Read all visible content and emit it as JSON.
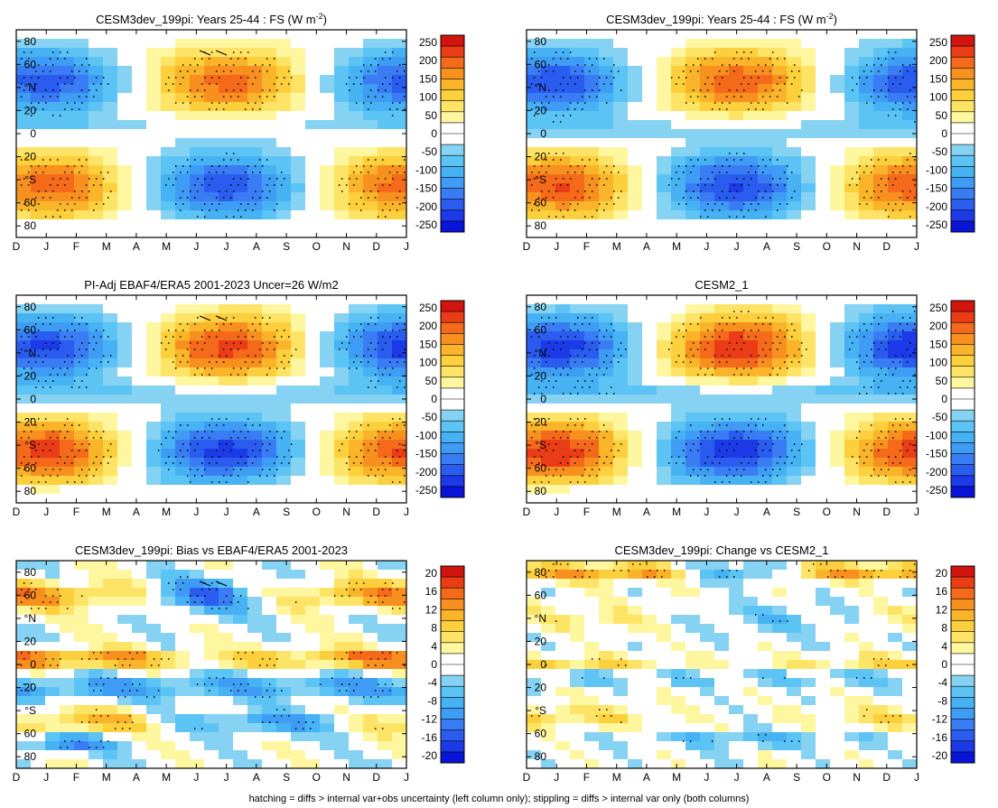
{
  "colors": {
    "fs_scale": [
      "#0a14d8",
      "#1c3ae8",
      "#2a5cf0",
      "#3a7cf4",
      "#3f9cf4",
      "#46b2f4",
      "#5cc4f4",
      "#86d2f2",
      "#ffffff",
      "#ffffff",
      "#fff6a0",
      "#fee466",
      "#fcd03c",
      "#fab42a",
      "#f89020",
      "#f46a1a",
      "#ea3c16",
      "#d2140f"
    ],
    "diff_scale": [
      "#0a14d8",
      "#1c3ae8",
      "#2a5cf0",
      "#3a7cf4",
      "#3f9cf4",
      "#46b2f4",
      "#5cc4f4",
      "#86d2f2",
      "#ffffff",
      "#ffffff",
      "#fff6a0",
      "#fee466",
      "#fcd03c",
      "#fab42a",
      "#f89020",
      "#f46a1a",
      "#ea3c16",
      "#d2140f"
    ]
  },
  "chart_data": [
    {
      "type": "heatmap",
      "title_main": "CESM3dev_199pi: Years 25-44 : FS (W m",
      "title_sup": "-2",
      "title_end": ")",
      "kind": "fs",
      "hatching": true,
      "x_ticklabels": [
        "D",
        "J",
        "F",
        "M",
        "A",
        "M",
        "J",
        "J",
        "A",
        "S",
        "O",
        "N",
        "D",
        "J"
      ],
      "y_ticklabels": [
        "80",
        "60",
        "°N",
        "20",
        "0",
        "20",
        "°S",
        "60",
        "80"
      ],
      "colorbar_labels": [
        "250",
        "200",
        "150",
        "100",
        "50",
        "0",
        "-50",
        "-100",
        "-150",
        "-200",
        "-250"
      ],
      "ylim": [
        -90,
        90
      ]
    },
    {
      "type": "heatmap",
      "title_main": "CESM3dev_199pi: Years 25-44 : FS (W m",
      "title_sup": "-2",
      "title_end": ")",
      "kind": "fs",
      "hatching": false,
      "x_ticklabels": [
        "D",
        "J",
        "F",
        "M",
        "A",
        "M",
        "J",
        "J",
        "A",
        "S",
        "O",
        "N",
        "D",
        "J"
      ],
      "y_ticklabels": [
        "80",
        "60",
        "°N",
        "20",
        "0",
        "20",
        "°S",
        "60",
        "80"
      ],
      "colorbar_labels": [
        "250",
        "200",
        "150",
        "100",
        "50",
        "0",
        "-50",
        "-100",
        "-150",
        "-200",
        "-250"
      ],
      "ylim": [
        -90,
        90
      ]
    },
    {
      "type": "heatmap",
      "title_main": "PI-Adj EBAF4/ERA5 2001-2023 Uncer=26 W/m2",
      "title_sup": "",
      "title_end": "",
      "kind": "fs",
      "hatching": true,
      "x_ticklabels": [
        "D",
        "J",
        "F",
        "M",
        "A",
        "M",
        "J",
        "J",
        "A",
        "S",
        "O",
        "N",
        "D",
        "J"
      ],
      "y_ticklabels": [
        "80",
        "60",
        "°N",
        "20",
        "0",
        "20",
        "°S",
        "60",
        "80"
      ],
      "colorbar_labels": [
        "250",
        "200",
        "150",
        "100",
        "50",
        "0",
        "-50",
        "-100",
        "-150",
        "-200",
        "-250"
      ],
      "ylim": [
        -90,
        90
      ]
    },
    {
      "type": "heatmap",
      "title_main": "CESM2_1",
      "title_sup": "",
      "title_end": "",
      "kind": "fs",
      "hatching": false,
      "x_ticklabels": [
        "D",
        "J",
        "F",
        "M",
        "A",
        "M",
        "J",
        "J",
        "A",
        "S",
        "O",
        "N",
        "D",
        "J"
      ],
      "y_ticklabels": [
        "80",
        "60",
        "°N",
        "20",
        "0",
        "20",
        "°S",
        "60",
        "80"
      ],
      "colorbar_labels": [
        "250",
        "200",
        "150",
        "100",
        "50",
        "0",
        "-50",
        "-100",
        "-150",
        "-200",
        "-250"
      ],
      "ylim": [
        -90,
        90
      ]
    },
    {
      "type": "heatmap",
      "title_main": "CESM3dev_199pi: Bias vs EBAF4/ERA5 2001-2023",
      "title_sup": "",
      "title_end": "",
      "kind": "bias",
      "hatching": true,
      "x_ticklabels": [
        "D",
        "J",
        "F",
        "M",
        "A",
        "M",
        "J",
        "J",
        "A",
        "S",
        "O",
        "N",
        "D",
        "J"
      ],
      "y_ticklabels": [
        "80",
        "60",
        "°N",
        "20",
        "0",
        "20",
        "°S",
        "60",
        "80"
      ],
      "colorbar_labels": [
        "20",
        "16",
        "12",
        "8",
        "4",
        "0",
        "-4",
        "-8",
        "-12",
        "-16",
        "-20"
      ],
      "ylim": [
        -90,
        90
      ]
    },
    {
      "type": "heatmap",
      "title_main": "CESM3dev_199pi: Change vs CESM2_1",
      "title_sup": "",
      "title_end": "",
      "kind": "change",
      "hatching": false,
      "x_ticklabels": [
        "D",
        "J",
        "F",
        "M",
        "A",
        "M",
        "J",
        "J",
        "A",
        "S",
        "O",
        "N",
        "D",
        "J"
      ],
      "y_ticklabels": [
        "80",
        "60",
        "°N",
        "20",
        "0",
        "20",
        "°S",
        "60",
        "80"
      ],
      "colorbar_labels": [
        "20",
        "16",
        "12",
        "8",
        "4",
        "0",
        "-4",
        "-8",
        "-12",
        "-16",
        "-20"
      ],
      "ylim": [
        -90,
        90
      ]
    }
  ],
  "footnote": "hatching = diffs > internal var+obs uncertainty (left column only); stippling = diffs > internal var only (both columns)"
}
